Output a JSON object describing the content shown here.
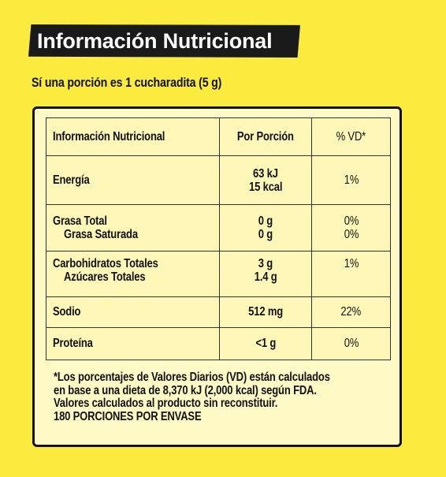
{
  "header": {
    "title": "Información Nutricional"
  },
  "serving": "Sí una porción es 1 cucharadita (5 g)",
  "table": {
    "headers": {
      "name": "Información Nutricional",
      "per_portion": "Por Porción",
      "dv": "% VD*"
    },
    "rows": [
      {
        "name": "Energía",
        "sub": "",
        "value": "63 kJ",
        "value2": "15 kcal",
        "dv": "1%",
        "dv2": ""
      },
      {
        "name": "Grasa Total",
        "sub": "Grasa Saturada",
        "value": "0 g",
        "value2": "0 g",
        "dv": "0%",
        "dv2": "0%"
      },
      {
        "name": "Carbohidratos Totales",
        "sub": "Azúcares Totales",
        "value": "3 g",
        "value2": "1.4 g",
        "dv": "1%",
        "dv2": ""
      },
      {
        "name": "Sodio",
        "sub": "",
        "value": "512 mg",
        "value2": "",
        "dv": "22%",
        "dv2": ""
      },
      {
        "name": "Proteína",
        "sub": "",
        "value": "<1 g",
        "value2": "",
        "dv": "0%",
        "dv2": ""
      }
    ]
  },
  "footnote": {
    "lines": [
      "*Los porcentajes de Valores Diarios (VD) están calculados",
      "en base a una dieta de 8,370 kJ (2,000 kcal) según FDA.",
      "Valores calculados al producto sin reconstituir.",
      "180 PORCIONES POR ENVASE"
    ]
  },
  "colors": {
    "background": "#fbeb3f",
    "panel": "#fff9c6",
    "banner": "#1a1a1a"
  }
}
